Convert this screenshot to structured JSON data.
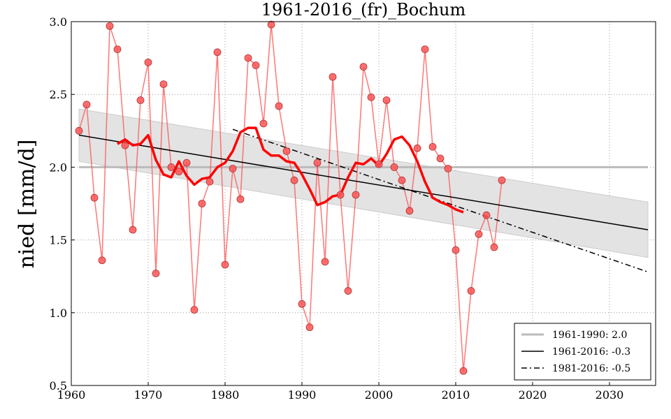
{
  "chart_data": {
    "type": "line",
    "title": "1961-2016_(fr)_Bochum",
    "xlabel": "",
    "ylabel": "nied [mm/d]",
    "xlim": [
      1960,
      2036
    ],
    "ylim": [
      0.5,
      3.0
    ],
    "grid": true,
    "xticks": [
      "1960",
      "1970",
      "1980",
      "1990",
      "2000",
      "2010",
      "2020",
      "2030"
    ],
    "yticks": [
      "0.5",
      "1.0",
      "1.5",
      "2.0",
      "2.5",
      "3.0"
    ],
    "observed": {
      "color": "#ff5555",
      "x": [
        1961,
        1962,
        1963,
        1964,
        1965,
        1966,
        1967,
        1968,
        1969,
        1970,
        1971,
        1972,
        1973,
        1974,
        1975,
        1976,
        1977,
        1978,
        1979,
        1980,
        1981,
        1982,
        1983,
        1984,
        1985,
        1986,
        1987,
        1988,
        1989,
        1990,
        1991,
        1992,
        1993,
        1994,
        1995,
        1996,
        1997,
        1998,
        1999,
        2000,
        2001,
        2002,
        2003,
        2004,
        2005,
        2006,
        2007,
        2008,
        2009,
        2010,
        2011,
        2012,
        2013,
        2014,
        2015,
        2016
      ],
      "y": [
        2.25,
        2.43,
        1.79,
        1.36,
        2.97,
        2.81,
        2.15,
        1.57,
        2.46,
        2.72,
        1.27,
        2.57,
        2.0,
        1.97,
        2.03,
        1.02,
        1.75,
        1.9,
        2.79,
        1.33,
        1.99,
        1.78,
        2.75,
        2.7,
        2.3,
        2.98,
        2.42,
        2.11,
        1.91,
        1.06,
        0.9,
        2.03,
        1.35,
        2.62,
        1.81,
        1.15,
        1.81,
        2.69,
        2.48,
        2.02,
        2.46,
        2.0,
        1.91,
        1.7,
        2.13,
        2.81,
        2.14,
        2.06,
        1.99,
        1.43,
        0.6,
        1.15,
        1.54,
        1.67,
        1.45,
        1.91
      ]
    },
    "smoothed": {
      "color": "#ff0000",
      "x": [
        1966,
        1967,
        1968,
        1969,
        1970,
        1971,
        1972,
        1973,
        1974,
        1975,
        1976,
        1977,
        1978,
        1979,
        1980,
        1981,
        1982,
        1983,
        1984,
        1985,
        1986,
        1987,
        1988,
        1989,
        1990,
        1991,
        1992,
        1993,
        1994,
        1995,
        1996,
        1997,
        1998,
        1999,
        2000,
        2001,
        2002,
        2003,
        2004,
        2005,
        2006,
        2007,
        2008,
        2009,
        2010,
        2011
      ],
      "y": [
        2.16,
        2.19,
        2.15,
        2.16,
        2.22,
        2.05,
        1.95,
        1.93,
        2.04,
        1.94,
        1.88,
        1.92,
        1.93,
        2.0,
        2.03,
        2.11,
        2.24,
        2.27,
        2.27,
        2.12,
        2.08,
        2.08,
        2.04,
        2.03,
        1.95,
        1.85,
        1.74,
        1.76,
        1.8,
        1.81,
        1.93,
        2.03,
        2.02,
        2.06,
        2.01,
        2.09,
        2.19,
        2.21,
        2.15,
        2.04,
        1.9,
        1.79,
        1.76,
        1.74,
        1.71,
        1.69
      ]
    },
    "reference": {
      "label": "1961-1990: 2.0",
      "x": [
        1961,
        2035
      ],
      "y": [
        2.0,
        2.0
      ],
      "color": "#bbbbbb"
    },
    "trend_all": {
      "label": "1961-2016: -0.3",
      "x": [
        1961,
        2035
      ],
      "y": [
        2.22,
        1.57
      ],
      "color": "#000000"
    },
    "trend_band": {
      "x": [
        1961,
        2035
      ],
      "upper": [
        2.4,
        1.76
      ],
      "lower": [
        2.04,
        1.38
      ],
      "color": "#e0e0e0"
    },
    "trend_recent": {
      "label": "1981-2016: -0.5",
      "x": [
        1981,
        2035
      ],
      "y": [
        2.26,
        1.28
      ],
      "color": "#000000"
    },
    "legend_position": "bottom-right"
  }
}
